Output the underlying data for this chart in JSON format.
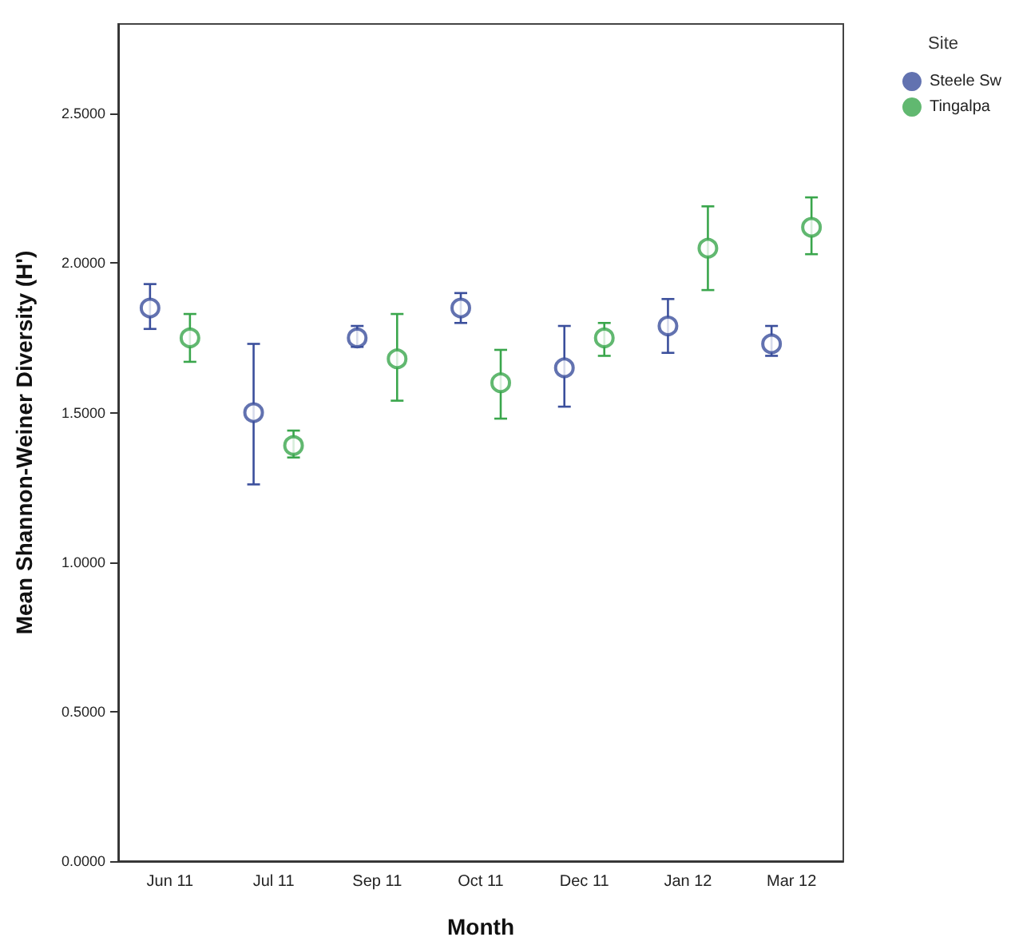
{
  "chart_data": {
    "type": "scatter",
    "xlabel": "Month",
    "ylabel": "Mean Shannon-Weiner Diversity (H')",
    "legend_title": "Site",
    "legend": "top right",
    "marker": "circle",
    "grid": false,
    "categories": [
      "Jun 11",
      "Jul 11",
      "Sep 11",
      "Oct 11",
      "Dec 11",
      "Jan 12",
      "Mar 12"
    ],
    "ylim": [
      0,
      2.8
    ],
    "yticks": [
      {
        "value": 0,
        "label": "0.0000"
      },
      {
        "value": 0.5,
        "label": "0.5000"
      },
      {
        "value": 1,
        "label": "1.0000"
      },
      {
        "value": 1.5,
        "label": "1.5000"
      },
      {
        "value": 2,
        "label": "2.0000"
      },
      {
        "value": 2.5,
        "label": "2.5000"
      }
    ],
    "series": [
      {
        "name": "Steele Sw",
        "color": "#3b4f9c",
        "values": [
          1.85,
          1.5,
          1.75,
          1.85,
          1.65,
          1.79,
          1.73
        ],
        "errors": [
          [
            1.78,
            1.93
          ],
          [
            1.26,
            1.73
          ],
          [
            1.72,
            1.79
          ],
          [
            1.8,
            1.9
          ],
          [
            1.52,
            1.79
          ],
          [
            1.7,
            1.88
          ],
          [
            1.69,
            1.79
          ]
        ]
      },
      {
        "name": "Tingalpa",
        "color": "#3aa64c",
        "values": [
          1.75,
          1.39,
          1.68,
          1.6,
          1.75,
          2.05,
          2.12
        ],
        "errors": [
          [
            1.67,
            1.83
          ],
          [
            1.35,
            1.44
          ],
          [
            1.54,
            1.83
          ],
          [
            1.48,
            1.71
          ],
          [
            1.69,
            1.8
          ],
          [
            1.91,
            2.19
          ],
          [
            2.03,
            2.22
          ]
        ]
      }
    ]
  }
}
